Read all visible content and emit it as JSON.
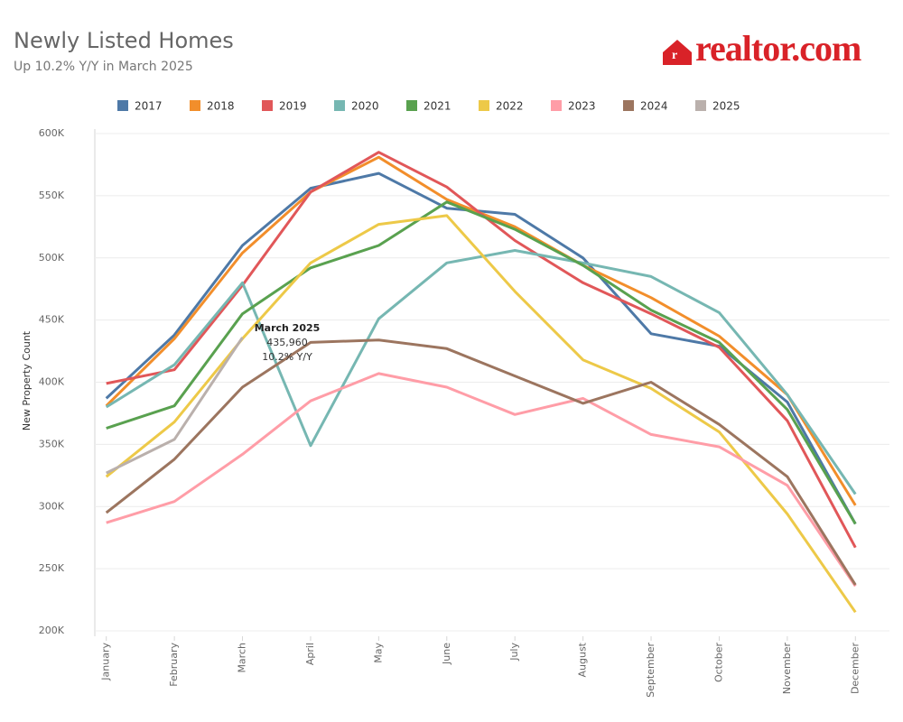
{
  "chart_data": {
    "type": "line",
    "title": "Newly Listed Homes",
    "subtitle": "Up 10.2% Y/Y in March 2025",
    "brand": "realtor.com",
    "y_label": "New Property Count",
    "annotation": [
      "March 2025",
      "435,960",
      "10.2% Y/Y"
    ],
    "categories": [
      "January",
      "February",
      "March",
      "April",
      "May",
      "June",
      "July",
      "August",
      "September",
      "October",
      "November",
      "December"
    ],
    "ylim": [
      200000,
      600000
    ],
    "yticks": [
      {
        "value": 200000,
        "label": "200K"
      },
      {
        "value": 250000,
        "label": "250K"
      },
      {
        "value": 300000,
        "label": "300K"
      },
      {
        "value": 350000,
        "label": "350K"
      },
      {
        "value": 400000,
        "label": "400K"
      },
      {
        "value": 450000,
        "label": "450K"
      },
      {
        "value": 500000,
        "label": "500K"
      },
      {
        "value": 550000,
        "label": "550K"
      },
      {
        "value": 600000,
        "label": "600K"
      }
    ],
    "grid": true,
    "series": [
      {
        "name": "2017",
        "color": "#4e79a7",
        "values": [
          387000,
          438000,
          510000,
          556000,
          568000,
          540000,
          535000,
          500000,
          439000,
          429000,
          384000,
          286000
        ]
      },
      {
        "name": "2018",
        "color": "#f28e2b",
        "values": [
          381000,
          435000,
          504000,
          553000,
          581000,
          547000,
          525000,
          494000,
          468000,
          437000,
          390000,
          301000
        ]
      },
      {
        "name": "2019",
        "color": "#e15759",
        "values": [
          399000,
          410000,
          478000,
          553000,
          585000,
          557000,
          514000,
          480000,
          455000,
          428000,
          369000,
          267000
        ]
      },
      {
        "name": "2020",
        "color": "#76b7b2",
        "values": [
          380000,
          414000,
          480000,
          349000,
          451000,
          496000,
          506000,
          496000,
          485000,
          456000,
          390000,
          310000
        ]
      },
      {
        "name": "2021",
        "color": "#59a14f",
        "values": [
          363000,
          381000,
          455000,
          492000,
          510000,
          545000,
          523000,
          494000,
          458000,
          432000,
          378000,
          286000
        ]
      },
      {
        "name": "2022",
        "color": "#edc948",
        "values": [
          324000,
          368000,
          435000,
          496000,
          527000,
          534000,
          473000,
          418000,
          395000,
          360000,
          294000,
          215000
        ]
      },
      {
        "name": "2023",
        "color": "#ff9da7",
        "values": [
          287000,
          304000,
          342000,
          385000,
          407000,
          396000,
          374000,
          387000,
          358000,
          348000,
          317000,
          236000
        ]
      },
      {
        "name": "2024",
        "color": "#9c755f",
        "values": [
          295000,
          338000,
          396000,
          432000,
          434000,
          427000,
          405000,
          383000,
          400000,
          366000,
          324000,
          237000
        ]
      },
      {
        "name": "2025",
        "color": "#bab0ac",
        "values": [
          327000,
          354000,
          435960,
          null,
          null,
          null,
          null,
          null,
          null,
          null,
          null,
          null
        ]
      }
    ]
  }
}
